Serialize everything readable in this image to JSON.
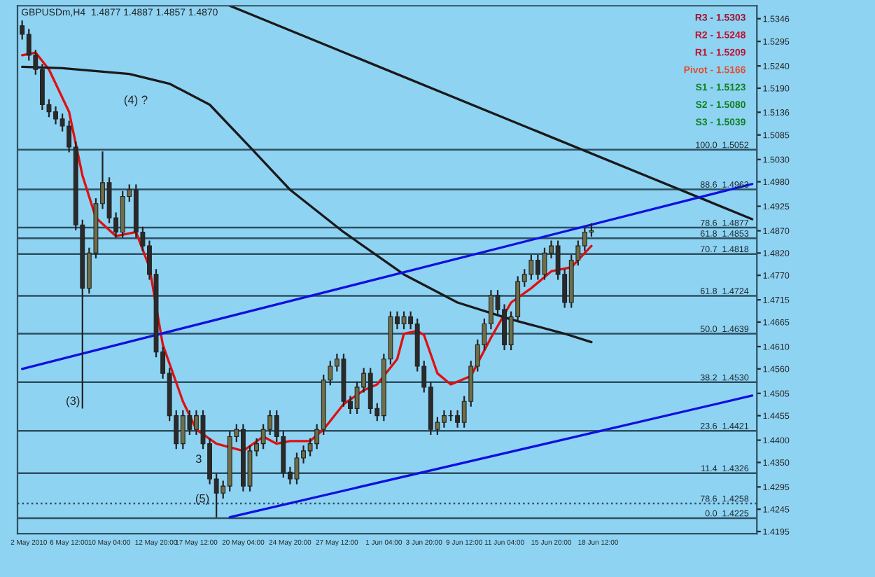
{
  "chart_data": {
    "type": "candlestick",
    "title": "GBPUSDm,H4  1.4877 1.4887 1.4857 1.4870",
    "categories": [
      null,
      "2 May 2010",
      null,
      null,
      null,
      null,
      null,
      "6 May 12:00",
      null,
      null,
      null,
      null,
      null,
      "10 May 04:00",
      null,
      null,
      null,
      null,
      null,
      null,
      "12 May 20:00",
      null,
      null,
      null,
      null,
      null,
      "17 May 12:00",
      null,
      null,
      null,
      null,
      null,
      null,
      "20 May 04:00",
      null,
      null,
      null,
      null,
      null,
      null,
      "24 May 20:00",
      null,
      null,
      null,
      null,
      null,
      null,
      "27 May 12:00",
      null,
      null,
      null,
      null,
      null,
      null,
      "1 Jun 04:00",
      null,
      null,
      null,
      null,
      null,
      "3 Jun 20:00",
      null,
      null,
      null,
      null,
      null,
      "9 Jun 12:00",
      null,
      null,
      null,
      null,
      null,
      "11 Jun 04:00",
      null,
      null,
      null,
      null,
      null,
      null,
      "15 Jun 20:00",
      null,
      null,
      null,
      null,
      null,
      null,
      "18 Jun 12:00",
      null,
      null,
      null,
      null,
      null,
      null,
      null,
      null,
      null,
      null,
      null,
      null,
      null,
      null,
      null,
      null,
      null,
      null,
      null,
      null,
      null,
      null,
      null
    ],
    "ohlc": [
      [
        1.533,
        1.5342,
        1.5299,
        1.5311
      ],
      [
        1.5311,
        1.5323,
        1.5252,
        1.5264
      ],
      [
        1.5264,
        1.5276,
        1.522,
        1.5232
      ],
      [
        1.5232,
        1.5244,
        1.5141,
        1.5153
      ],
      [
        1.5153,
        1.5165,
        1.5125,
        1.5137
      ],
      [
        1.5137,
        1.5149,
        1.5109,
        1.5121
      ],
      [
        1.5121,
        1.5133,
        1.5093,
        1.5105
      ],
      [
        1.5105,
        1.5117,
        1.5046,
        1.5058
      ],
      [
        1.5058,
        1.507,
        1.4871,
        1.4883
      ],
      [
        1.4883,
        1.4895,
        1.4471,
        1.4741
      ],
      [
        1.4741,
        1.4832,
        1.4729,
        1.482
      ],
      [
        1.482,
        1.4943,
        1.4808,
        1.4931
      ],
      [
        1.4931,
        1.5048,
        1.4919,
        1.4978
      ],
      [
        1.4978,
        1.499,
        1.4887,
        1.4899
      ],
      [
        1.4899,
        1.4911,
        1.4855,
        1.4867
      ],
      [
        1.4867,
        1.4959,
        1.4855,
        1.4947
      ],
      [
        1.4947,
        1.4974,
        1.4935,
        1.4962
      ],
      [
        1.4962,
        1.4974,
        1.4855,
        1.4867
      ],
      [
        1.4867,
        1.4879,
        1.4824,
        1.4836
      ],
      [
        1.4836,
        1.4848,
        1.476,
        1.4772
      ],
      [
        1.4772,
        1.4784,
        1.4586,
        1.4598
      ],
      [
        1.4598,
        1.461,
        1.4538,
        1.455
      ],
      [
        1.455,
        1.4562,
        1.4443,
        1.4455
      ],
      [
        1.4455,
        1.4467,
        1.438,
        1.4392
      ],
      [
        1.4392,
        1.4467,
        1.438,
        1.4455
      ],
      [
        1.4455,
        1.4467,
        1.4412,
        1.4424
      ],
      [
        1.4424,
        1.4467,
        1.4412,
        1.4455
      ],
      [
        1.4455,
        1.4467,
        1.438,
        1.4392
      ],
      [
        1.4392,
        1.4404,
        1.4301,
        1.4313
      ],
      [
        1.4313,
        1.4325,
        1.4227,
        1.4281
      ],
      [
        1.4281,
        1.4309,
        1.4269,
        1.4297
      ],
      [
        1.4297,
        1.442,
        1.4285,
        1.4408
      ],
      [
        1.4408,
        1.4436,
        1.4396,
        1.4424
      ],
      [
        1.4424,
        1.4436,
        1.4285,
        1.4297
      ],
      [
        1.4297,
        1.4388,
        1.4285,
        1.4376
      ],
      [
        1.4376,
        1.4404,
        1.4364,
        1.4392
      ],
      [
        1.4392,
        1.4436,
        1.438,
        1.4424
      ],
      [
        1.4424,
        1.4467,
        1.4412,
        1.4455
      ],
      [
        1.4455,
        1.4467,
        1.4396,
        1.4408
      ],
      [
        1.4408,
        1.442,
        1.4316,
        1.4328
      ],
      [
        1.4328,
        1.434,
        1.4301,
        1.4313
      ],
      [
        1.4313,
        1.4372,
        1.4301,
        1.436
      ],
      [
        1.436,
        1.4388,
        1.4348,
        1.4376
      ],
      [
        1.4376,
        1.4404,
        1.4364,
        1.4392
      ],
      [
        1.4392,
        1.4436,
        1.438,
        1.4424
      ],
      [
        1.4424,
        1.4547,
        1.4412,
        1.4535
      ],
      [
        1.4535,
        1.4578,
        1.4523,
        1.4566
      ],
      [
        1.4566,
        1.4594,
        1.4554,
        1.4582
      ],
      [
        1.4582,
        1.4594,
        1.4475,
        1.4487
      ],
      [
        1.4487,
        1.4499,
        1.4459,
        1.4471
      ],
      [
        1.4471,
        1.4531,
        1.4459,
        1.4519
      ],
      [
        1.4519,
        1.4562,
        1.4507,
        1.455
      ],
      [
        1.455,
        1.4562,
        1.4459,
        1.4471
      ],
      [
        1.4471,
        1.4483,
        1.4443,
        1.4455
      ],
      [
        1.4455,
        1.4594,
        1.4443,
        1.4582
      ],
      [
        1.4582,
        1.4689,
        1.457,
        1.4677
      ],
      [
        1.4677,
        1.4689,
        1.4649,
        1.4661
      ],
      [
        1.4661,
        1.4689,
        1.4649,
        1.4677
      ],
      [
        1.4677,
        1.4689,
        1.4649,
        1.4661
      ],
      [
        1.4661,
        1.4673,
        1.4554,
        1.4566
      ],
      [
        1.4566,
        1.4578,
        1.4507,
        1.4519
      ],
      [
        1.4519,
        1.4531,
        1.4412,
        1.4424
      ],
      [
        1.4424,
        1.4452,
        1.4412,
        1.444
      ],
      [
        1.444,
        1.4467,
        1.4428,
        1.4455
      ],
      [
        1.4455,
        1.4467,
        1.4443,
        1.4455
      ],
      [
        1.4455,
        1.4467,
        1.4428,
        1.444
      ],
      [
        1.444,
        1.4499,
        1.4428,
        1.4487
      ],
      [
        1.4487,
        1.4578,
        1.4475,
        1.4566
      ],
      [
        1.4566,
        1.4626,
        1.4554,
        1.4614
      ],
      [
        1.4614,
        1.4673,
        1.4602,
        1.4661
      ],
      [
        1.4661,
        1.4737,
        1.4649,
        1.4725
      ],
      [
        1.4725,
        1.4737,
        1.4681,
        1.4693
      ],
      [
        1.4693,
        1.4705,
        1.4602,
        1.4614
      ],
      [
        1.4614,
        1.4689,
        1.4602,
        1.4677
      ],
      [
        1.4677,
        1.4768,
        1.4665,
        1.4756
      ],
      [
        1.4756,
        1.4784,
        1.4744,
        1.4772
      ],
      [
        1.4772,
        1.4816,
        1.476,
        1.4804
      ],
      [
        1.4804,
        1.4816,
        1.476,
        1.4772
      ],
      [
        1.4772,
        1.4832,
        1.476,
        1.482
      ],
      [
        1.482,
        1.4848,
        1.4808,
        1.4836
      ],
      [
        1.4836,
        1.4848,
        1.476,
        1.4772
      ],
      [
        1.4772,
        1.4784,
        1.4697,
        1.4709
      ],
      [
        1.4709,
        1.4816,
        1.4697,
        1.4804
      ],
      [
        1.4804,
        1.4848,
        1.4792,
        1.4836
      ],
      [
        1.4836,
        1.4879,
        1.4824,
        1.4867
      ],
      [
        1.4867,
        1.4887,
        1.4857,
        1.487
      ],
      null,
      null,
      null,
      null,
      null,
      null,
      null,
      null,
      null,
      null,
      null,
      null,
      null,
      null,
      null,
      null,
      null,
      null,
      null,
      null,
      null,
      null,
      null,
      null
    ],
    "series": [
      {
        "type": "line",
        "color": "#e01010",
        "values": [
          1.5264,
          null,
          1.527,
          null,
          1.5232,
          null,
          null,
          1.5137,
          null,
          1.4994,
          null,
          1.4899,
          null,
          null,
          1.4858,
          null,
          null,
          1.4867,
          null,
          1.4788,
          null,
          1.4614,
          null,
          null,
          1.4487,
          null,
          1.4424,
          null,
          null,
          1.4392,
          null,
          null,
          null,
          1.4376,
          null,
          null,
          1.4408,
          null,
          1.4392,
          null,
          1.4398,
          null,
          null,
          1.4398,
          null,
          1.4424,
          null,
          null,
          1.4481,
          null,
          null,
          1.4512,
          null,
          1.4525,
          null,
          null,
          1.4582,
          1.4639,
          null,
          1.4645,
          1.4636,
          null,
          1.455,
          null,
          1.4525,
          null,
          null,
          1.4544,
          null,
          null,
          1.463,
          null,
          null,
          1.4709,
          null,
          null,
          1.4741,
          null,
          null,
          1.4779,
          null,
          null,
          1.4788,
          null,
          null,
          1.4836,
          null,
          null,
          null,
          null,
          null,
          null,
          null,
          null,
          null,
          null,
          null,
          null,
          null,
          null,
          null,
          null,
          null,
          null,
          null,
          null,
          null,
          null,
          null,
          null
        ]
      },
      {
        "type": "line",
        "color": "#1a1a1a",
        "values": [
          1.5238,
          null,
          null,
          null,
          null,
          null,
          1.5235,
          null,
          null,
          null,
          null,
          null,
          null,
          null,
          null,
          null,
          1.5222,
          null,
          null,
          null,
          null,
          null,
          1.52,
          null,
          null,
          null,
          null,
          null,
          1.5153,
          null,
          null,
          null,
          null,
          null,
          1.5058,
          null,
          null,
          null,
          null,
          null,
          1.4962,
          null,
          null,
          null,
          null,
          null,
          null,
          null,
          1.4867,
          null,
          null,
          null,
          null,
          null,
          null,
          null,
          null,
          1.4772,
          null,
          null,
          null,
          null,
          null,
          null,
          null,
          1.4709,
          null,
          null,
          null,
          null,
          null,
          null,
          null,
          1.4671,
          null,
          null,
          null,
          null,
          null,
          null,
          null,
          1.4639,
          null,
          null,
          null,
          1.462,
          null,
          null,
          null,
          null,
          null,
          null,
          null,
          null,
          null,
          null,
          null,
          null,
          null,
          null,
          null,
          null,
          null,
          null,
          null,
          null,
          null,
          null,
          null,
          null
        ]
      },
      {
        "type": "line",
        "color": "#1a1a1a",
        "values": [
          null,
          null,
          null,
          null,
          null,
          null,
          null,
          null,
          null,
          null,
          null,
          null,
          null,
          null,
          null,
          null,
          null,
          null,
          null,
          null,
          null,
          null,
          null,
          null,
          null,
          null,
          null,
          null,
          null,
          null,
          null,
          1.5375,
          null,
          null,
          null,
          null,
          null,
          null,
          null,
          null,
          null,
          null,
          null,
          null,
          null,
          null,
          null,
          null,
          null,
          null,
          null,
          null,
          null,
          null,
          null,
          null,
          null,
          null,
          null,
          null,
          null,
          null,
          null,
          null,
          null,
          null,
          null,
          null,
          null,
          null,
          null,
          null,
          null,
          null,
          null,
          null,
          null,
          null,
          null,
          null,
          null,
          null,
          null,
          null,
          null,
          null,
          null,
          null,
          null,
          null,
          null,
          null,
          null,
          null,
          null,
          null,
          null,
          null,
          null,
          null,
          null,
          null,
          null,
          null,
          null,
          null,
          null,
          null,
          null,
          1.4896
        ]
      },
      {
        "type": "line",
        "color": "#1010e0",
        "values": [
          1.456,
          null,
          null,
          null,
          null,
          null,
          null,
          null,
          null,
          null,
          null,
          null,
          null,
          null,
          null,
          null,
          null,
          null,
          null,
          null,
          null,
          null,
          null,
          null,
          null,
          null,
          null,
          null,
          null,
          null,
          null,
          null,
          null,
          null,
          null,
          null,
          null,
          null,
          null,
          null,
          null,
          null,
          null,
          null,
          null,
          null,
          null,
          null,
          null,
          null,
          null,
          null,
          null,
          null,
          null,
          null,
          null,
          null,
          null,
          null,
          null,
          null,
          null,
          null,
          null,
          null,
          null,
          null,
          null,
          null,
          null,
          null,
          null,
          null,
          null,
          null,
          null,
          null,
          null,
          null,
          null,
          null,
          null,
          null,
          null,
          null,
          null,
          null,
          null,
          null,
          null,
          null,
          null,
          null,
          null,
          null,
          null,
          null,
          null,
          null,
          null,
          null,
          null,
          null,
          null,
          null,
          null,
          null,
          null,
          1.4975
        ]
      },
      {
        "type": "line",
        "color": "#1010e0",
        "values": [
          null,
          null,
          null,
          null,
          null,
          null,
          null,
          null,
          null,
          null,
          null,
          null,
          null,
          null,
          null,
          null,
          null,
          null,
          null,
          null,
          null,
          null,
          null,
          null,
          null,
          null,
          null,
          null,
          null,
          null,
          null,
          1.4227,
          null,
          null,
          null,
          null,
          null,
          null,
          null,
          null,
          null,
          null,
          null,
          null,
          null,
          null,
          null,
          null,
          null,
          null,
          null,
          null,
          null,
          null,
          null,
          null,
          null,
          null,
          null,
          null,
          null,
          null,
          null,
          null,
          null,
          null,
          null,
          null,
          null,
          null,
          null,
          null,
          null,
          null,
          null,
          null,
          null,
          null,
          null,
          null,
          null,
          null,
          null,
          null,
          null,
          null,
          null,
          null,
          null,
          null,
          null,
          null,
          null,
          null,
          null,
          null,
          null,
          null,
          null,
          null,
          null,
          null,
          null,
          null,
          null,
          null,
          null,
          null,
          null,
          1.45
        ]
      }
    ],
    "ref_lines": [
      {
        "axis": "y",
        "value": 1.5052,
        "label": "100.0  1.5052",
        "color": "#2e5060"
      },
      {
        "axis": "y",
        "value": 1.4963,
        "label": "88.6  1.4963",
        "color": "#2e5060"
      },
      {
        "axis": "y",
        "value": 1.4877,
        "label": "78.6  1.4877",
        "color": "#2e5060"
      },
      {
        "axis": "y",
        "value": 1.4853,
        "label": "61.8  1.4853",
        "color": "#2e5060"
      },
      {
        "axis": "y",
        "value": 1.4818,
        "label": "70.7  1.4818",
        "color": "#2e5060"
      },
      {
        "axis": "y",
        "value": 1.4724,
        "label": "61.8  1.4724",
        "color": "#2e5060"
      },
      {
        "axis": "y",
        "value": 1.4639,
        "label": "50.0  1.4639",
        "color": "#2e5060"
      },
      {
        "axis": "y",
        "value": 1.453,
        "label": "38.2  1.4530",
        "color": "#2e5060"
      },
      {
        "axis": "y",
        "value": 1.4421,
        "label": "23.6  1.4421",
        "color": "#2e5060"
      },
      {
        "axis": "y",
        "value": 1.4326,
        "label": "11.4  1.4326",
        "color": "#2e5060"
      },
      {
        "axis": "y",
        "value": 1.4258,
        "label": "78.6  1.4258",
        "color": "#2e5060",
        "line_style": "dotted"
      },
      {
        "axis": "y",
        "value": 1.4225,
        "label": "0.0  1.4225",
        "color": "#2e5060"
      }
    ],
    "annotations": [
      "(4) ?",
      "(3)",
      "3",
      "(5)",
      "R3 - 1.5303",
      "R2 - 1.5248",
      "R1 - 1.5209",
      "Pivot - 1.5166",
      "S1 - 1.5123",
      "S2 - 1.5080",
      "S3 - 1.5039"
    ],
    "ylim": [
      1.419,
      1.5375
    ],
    "yticks": [
      1.5346,
      1.5295,
      {
        "value": 1.524,
        "label": "1.5240"
      },
      {
        "value": 1.519,
        "label": "1.5190"
      },
      1.5136,
      1.5085,
      {
        "value": 1.503,
        "label": "1.5030"
      },
      {
        "value": 1.498,
        "label": "1.4980"
      },
      1.4925,
      {
        "value": 1.487,
        "label": "1.4870"
      },
      {
        "value": 1.482,
        "label": "1.4820"
      },
      {
        "value": 1.477,
        "label": "1.4770"
      },
      1.4715,
      1.4665,
      {
        "value": 1.461,
        "label": "1.4610"
      },
      {
        "value": 1.456,
        "label": "1.4560"
      },
      1.4505,
      1.4455,
      {
        "value": 1.44,
        "label": "1.4400"
      },
      {
        "value": 1.435,
        "label": "1.4350"
      },
      1.4295,
      1.4245,
      1.4195
    ]
  }
}
